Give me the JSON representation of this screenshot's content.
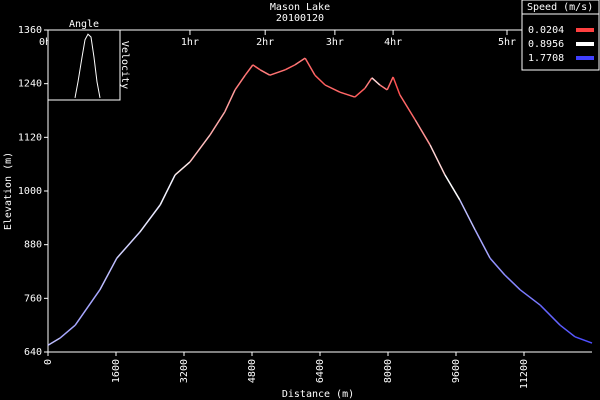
{
  "chart_data": {
    "type": "speed-profile",
    "title": "Mason Lake",
    "subtitle": "20100120",
    "x_label": "Distance (m)",
    "y_label": "Elevation (m)",
    "xlim": [
      0,
      12800
    ],
    "ylim": [
      640,
      1360
    ],
    "xticks": [
      0,
      1600,
      3200,
      4800,
      6400,
      8000,
      9600,
      11200
    ],
    "yticks": [
      640,
      760,
      880,
      1000,
      1120,
      1240,
      1360
    ],
    "top_ticks": [
      {
        "value": 0,
        "label": "0hr"
      },
      {
        "value": 3340,
        "label": "1hr"
      },
      {
        "value": 5110,
        "label": "2hr"
      },
      {
        "value": 6750,
        "label": "3hr"
      },
      {
        "value": 8120,
        "label": "4hr"
      },
      {
        "value": 10800,
        "label": "5hr"
      }
    ],
    "legend": {
      "title": "Speed (m/s)",
      "position": "top-right",
      "entries": [
        {
          "name": "0.0204",
          "value": 0.0204,
          "color": "#ff4040"
        },
        {
          "name": "0.8956",
          "value": 0.8956,
          "color": "#ffffff"
        },
        {
          "name": "1.7708",
          "value": 1.7708,
          "color": "#4040ff"
        }
      ]
    },
    "series": [
      {
        "x": [
          0,
          280,
          640,
          1220,
          1620,
          2160,
          2640,
          2990,
          3340,
          3810,
          4160,
          4400,
          4640,
          4820,
          4990,
          5220,
          5580,
          5810,
          6050,
          6280,
          6520,
          6870,
          7220,
          7460,
          7620,
          7810,
          7980,
          8120,
          8280,
          8640,
          8990,
          9340,
          9690,
          10050,
          10400,
          10750,
          11110,
          11580,
          12050,
          12400,
          12800
        ],
        "values": [
          655,
          671,
          700,
          779,
          850,
          908,
          969,
          1036,
          1065,
          1125,
          1177,
          1226,
          1259,
          1282,
          1271,
          1259,
          1271,
          1282,
          1297,
          1259,
          1237,
          1221,
          1210,
          1230,
          1253,
          1237,
          1226,
          1255,
          1215,
          1159,
          1103,
          1036,
          980,
          913,
          850,
          812,
          779,
          745,
          700,
          674,
          660
        ],
        "speed": [
          1.2,
          1.3,
          1.3,
          1.2,
          1.1,
          1.0,
          0.95,
          0.8,
          0.6,
          0.5,
          0.45,
          0.3,
          0.25,
          0.2,
          0.3,
          0.25,
          0.2,
          0.3,
          0.2,
          0.15,
          0.2,
          0.2,
          0.15,
          0.3,
          0.7,
          0.3,
          0.2,
          0.1,
          0.2,
          0.4,
          0.7,
          0.9,
          1.2,
          1.3,
          1.4,
          1.45,
          1.5,
          1.6,
          1.65,
          1.7,
          1.7
        ]
      }
    ],
    "inset": {
      "title": "Angle",
      "y_label": "Velocity",
      "xlim": [
        0,
        72
      ],
      "ylim": [
        0,
        100
      ],
      "x": [
        27,
        30,
        34,
        37,
        40,
        43,
        46,
        49,
        52
      ],
      "values": [
        3,
        26,
        61,
        86,
        94,
        90,
        61,
        26,
        3
      ]
    }
  }
}
